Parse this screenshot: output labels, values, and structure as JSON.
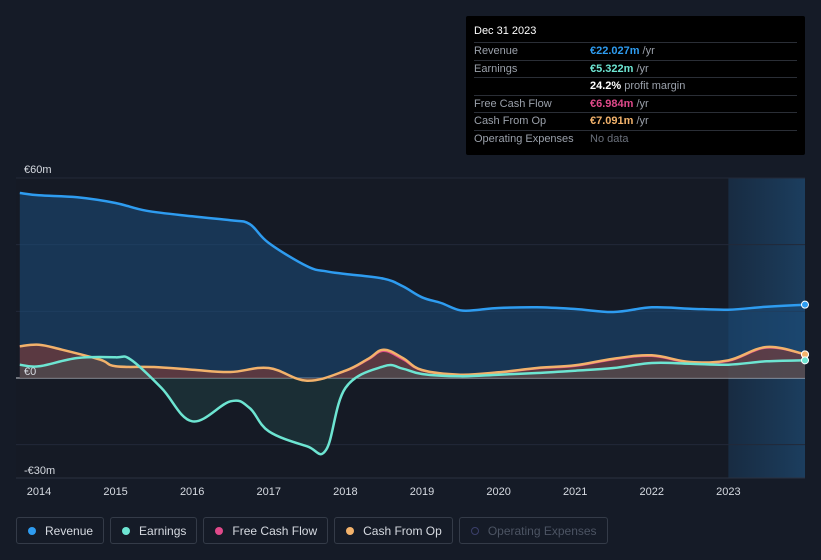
{
  "tooltip": {
    "date": "Dec 31 2023",
    "rows": [
      {
        "label": "Revenue",
        "value": "€22.027m",
        "unit": "/yr",
        "color": "#2e9cf0"
      },
      {
        "label": "Earnings",
        "value": "€5.322m",
        "unit": "/yr",
        "color": "#6de5d2"
      },
      {
        "label": "",
        "value": "24.2%",
        "unit": "profit margin",
        "color": "#ffffff"
      },
      {
        "label": "Free Cash Flow",
        "value": "€6.984m",
        "unit": "/yr",
        "color": "#e0498a"
      },
      {
        "label": "Cash From Op",
        "value": "€7.091m",
        "unit": "/yr",
        "color": "#f2b26b"
      },
      {
        "label": "Operating Expenses",
        "value": "No data",
        "unit": "",
        "color": "#6b717c"
      }
    ]
  },
  "legend": [
    {
      "label": "Revenue",
      "color": "#2e9cf0",
      "enabled": true
    },
    {
      "label": "Earnings",
      "color": "#6de5d2",
      "enabled": true
    },
    {
      "label": "Free Cash Flow",
      "color": "#e0498a",
      "enabled": true
    },
    {
      "label": "Cash From Op",
      "color": "#f2b26b",
      "enabled": true
    },
    {
      "label": "Operating Expenses",
      "color": "#3b3f6b",
      "enabled": false
    }
  ],
  "chart_data": {
    "type": "area",
    "ylabels": [
      "€60m",
      "€0",
      "-€30m"
    ],
    "ylabel_values": [
      60,
      0,
      -30
    ],
    "ylim": [
      -30,
      60
    ],
    "xlim": [
      2013.7,
      2024.0
    ],
    "x_ticks": [
      2014,
      2015,
      2016,
      2017,
      2018,
      2019,
      2020,
      2021,
      2022,
      2023
    ],
    "x_tick_labels": [
      "2014",
      "2015",
      "2016",
      "2017",
      "2018",
      "2019",
      "2020",
      "2021",
      "2022",
      "2023"
    ],
    "forecast_start": 2023.0,
    "series": [
      {
        "name": "Revenue",
        "color": "#2e9cf0",
        "points": [
          [
            2013.75,
            55.5
          ],
          [
            2014.0,
            54.8
          ],
          [
            2014.5,
            54.2
          ],
          [
            2015.0,
            52.5
          ],
          [
            2015.4,
            50.2
          ],
          [
            2016.0,
            48.5
          ],
          [
            2016.5,
            47.3
          ],
          [
            2016.75,
            46.2
          ],
          [
            2017.0,
            40.5
          ],
          [
            2017.5,
            33.5
          ],
          [
            2017.75,
            32.0
          ],
          [
            2018.0,
            31.2
          ],
          [
            2018.5,
            29.8
          ],
          [
            2018.75,
            27.5
          ],
          [
            2019.0,
            24.2
          ],
          [
            2019.25,
            22.5
          ],
          [
            2019.5,
            20.3
          ],
          [
            2019.75,
            20.5
          ],
          [
            2020.0,
            21.0
          ],
          [
            2020.5,
            21.2
          ],
          [
            2021.0,
            20.7
          ],
          [
            2021.5,
            19.8
          ],
          [
            2022.0,
            21.2
          ],
          [
            2022.5,
            20.8
          ],
          [
            2023.0,
            20.5
          ],
          [
            2023.5,
            21.4
          ],
          [
            2024.0,
            22.0
          ]
        ]
      },
      {
        "name": "Earnings",
        "color": "#6de5d2",
        "points": [
          [
            2013.75,
            4.0
          ],
          [
            2014.0,
            3.5
          ],
          [
            2014.5,
            6.0
          ],
          [
            2015.0,
            6.2
          ],
          [
            2015.2,
            5.5
          ],
          [
            2015.6,
            -3.0
          ],
          [
            2016.0,
            -13.0
          ],
          [
            2016.5,
            -7.0
          ],
          [
            2016.75,
            -9.0
          ],
          [
            2017.0,
            -16.0
          ],
          [
            2017.5,
            -20.5
          ],
          [
            2017.75,
            -21.5
          ],
          [
            2018.0,
            -3.0
          ],
          [
            2018.5,
            3.5
          ],
          [
            2018.75,
            2.8
          ],
          [
            2019.0,
            1.2
          ],
          [
            2019.5,
            0.5
          ],
          [
            2020.0,
            1.0
          ],
          [
            2020.5,
            1.5
          ],
          [
            2021.0,
            2.2
          ],
          [
            2021.5,
            3.0
          ],
          [
            2022.0,
            4.5
          ],
          [
            2022.5,
            4.3
          ],
          [
            2023.0,
            4.0
          ],
          [
            2023.5,
            5.0
          ],
          [
            2024.0,
            5.3
          ]
        ]
      },
      {
        "name": "Free Cash Flow",
        "color": "#e0498a",
        "points": [
          [
            2013.75,
            9.5
          ],
          [
            2014.0,
            10.0
          ],
          [
            2014.3,
            8.5
          ],
          [
            2014.8,
            5.5
          ],
          [
            2015.0,
            3.5
          ],
          [
            2015.5,
            3.3
          ],
          [
            2016.0,
            2.5
          ],
          [
            2016.5,
            1.8
          ],
          [
            2017.0,
            3.0
          ],
          [
            2017.5,
            -0.8
          ],
          [
            2018.0,
            2.0
          ],
          [
            2018.3,
            5.5
          ],
          [
            2018.5,
            8.0
          ],
          [
            2018.75,
            5.5
          ],
          [
            2019.0,
            2.2
          ],
          [
            2019.5,
            0.8
          ],
          [
            2020.0,
            1.5
          ],
          [
            2020.5,
            2.8
          ],
          [
            2021.0,
            3.5
          ],
          [
            2021.5,
            5.5
          ],
          [
            2022.0,
            6.5
          ],
          [
            2022.5,
            4.5
          ],
          [
            2023.0,
            5.0
          ],
          [
            2023.5,
            9.0
          ],
          [
            2024.0,
            7.0
          ]
        ]
      },
      {
        "name": "Cash From Op",
        "color": "#f2b26b",
        "points": [
          [
            2013.75,
            9.5
          ],
          [
            2014.0,
            10.0
          ],
          [
            2014.3,
            8.5
          ],
          [
            2014.8,
            5.5
          ],
          [
            2015.0,
            3.5
          ],
          [
            2015.5,
            3.3
          ],
          [
            2016.0,
            2.5
          ],
          [
            2016.5,
            1.8
          ],
          [
            2017.0,
            3.0
          ],
          [
            2017.5,
            -0.8
          ],
          [
            2018.0,
            2.2
          ],
          [
            2018.3,
            5.8
          ],
          [
            2018.5,
            8.5
          ],
          [
            2018.75,
            6.0
          ],
          [
            2019.0,
            2.4
          ],
          [
            2019.5,
            1.0
          ],
          [
            2020.0,
            1.7
          ],
          [
            2020.5,
            3.0
          ],
          [
            2021.0,
            3.8
          ],
          [
            2021.5,
            5.8
          ],
          [
            2022.0,
            6.8
          ],
          [
            2022.5,
            4.8
          ],
          [
            2023.0,
            5.3
          ],
          [
            2023.5,
            9.3
          ],
          [
            2024.0,
            7.1
          ]
        ]
      }
    ]
  }
}
